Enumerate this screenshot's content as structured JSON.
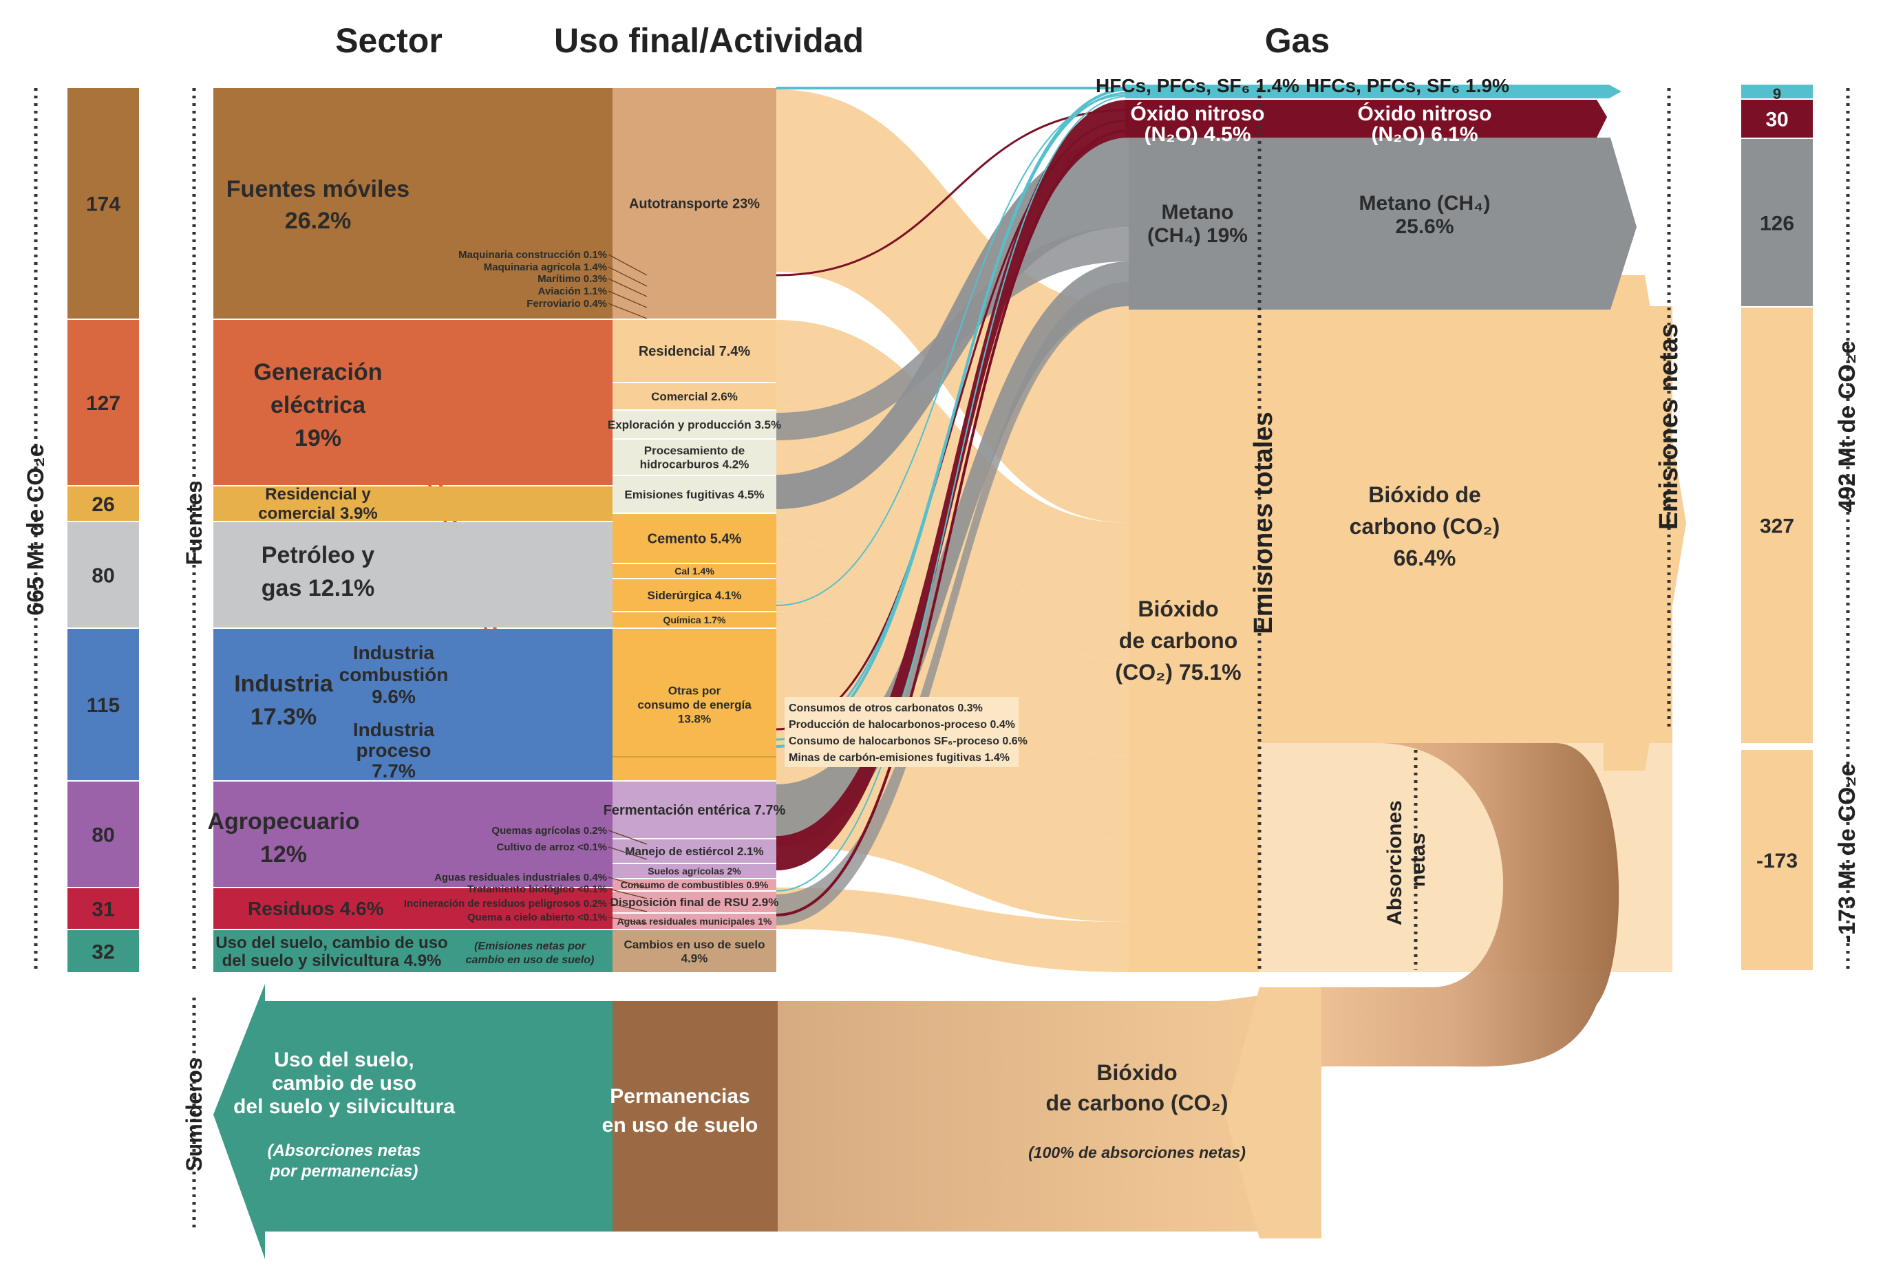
{
  "headers": {
    "sector": "Sector",
    "activity": "Uso final/Actividad",
    "gas": "Gas"
  },
  "side_labels": {
    "left_total": "665 Mt de CO₂e",
    "fuentes": "Fuentes",
    "sumideros": "Sumideros",
    "emisiones_totales": "Emisiones totales",
    "emisiones_netas": "Emisiones netas",
    "absorciones_netas": "Absorciones netas",
    "right_total": "492 Mt de CO₂e",
    "right_negative": "-173 Mt de CO₂e"
  },
  "colors": {
    "mobile": "#a9733b",
    "electric": "#d9673f",
    "residential": "#e8b04a",
    "oil": "#c6c7c9",
    "industry": "#4f7ec0",
    "agro": "#9b62a9",
    "waste": "#c0233f",
    "landuse": "#3d9a87",
    "co2": "#f8cf97",
    "ch4": "#8e9194",
    "n2o": "#7b0f26",
    "hfc": "#55c0cd"
  },
  "left_totals": [
    {
      "value": "174",
      "color": "#a9733b"
    },
    {
      "value": "127",
      "color": "#d9673f"
    },
    {
      "value": "26",
      "color": "#e8b04a"
    },
    {
      "value": "80",
      "color": "#c6c7c9"
    },
    {
      "value": "115",
      "color": "#4f7ec0"
    },
    {
      "value": "80",
      "color": "#9b62a9"
    },
    {
      "value": "31",
      "color": "#c0233f"
    },
    {
      "value": "32",
      "color": "#3d9a87"
    }
  ],
  "sectors": {
    "mobile": [
      "Fuentes móviles",
      "26.2%"
    ],
    "electric": [
      "Generación",
      "eléctrica",
      "19%"
    ],
    "residential": [
      "Residencial y",
      "comercial 3.9%"
    ],
    "oil": [
      "Petróleo y",
      "gas 12.1%"
    ],
    "industry": [
      "Industria",
      "17.3%"
    ],
    "ind_comb": [
      "Industria",
      "combustión",
      "9.6%"
    ],
    "ind_proc": [
      "Industria",
      "proceso",
      "7.7%"
    ],
    "agro": [
      "Agropecuario",
      "12%"
    ],
    "waste": "Residuos 4.6%",
    "landuse": [
      "Uso del suelo, cambio de uso",
      "del suelo y silvicultura 4.9%"
    ],
    "landuse_note": [
      "(Emisiones netas por",
      "cambio en uso de suelo)"
    ]
  },
  "subsectors": [
    "Maquinaria construcción 0.1%",
    "Maquinaria agrícola 1.4%",
    "Marítimo 0.3%",
    "Aviación 1.1%",
    "Ferroviario 0.4%",
    "Quemas agrícolas 0.2%",
    "Cultivo de arroz <0.1%",
    "Aguas residuales industriales 0.4%",
    "Tratamiento biológico <0.1%",
    "Incineración de residuos peligrosos 0.2%",
    "Quema a cielo abierto <0.1%"
  ],
  "activities": {
    "autotransporte": "Autotransporte 23%",
    "residencial": "Residencial 7.4%",
    "comercial": "Comercial 2.6%",
    "exploracion": "Exploración y producción 3.5%",
    "procesamiento": [
      "Procesamiento de",
      "hidrocarburos 4.2%"
    ],
    "fugitivas": "Emisiones fugitivas 4.5%",
    "cemento": "Cemento 5.4%",
    "cal": "Cal 1.4%",
    "siderurgica": "Siderúrgica 4.1%",
    "quimica": "Química 1.7%",
    "otras": [
      "Otras por",
      "consumo de energía",
      "13.8%"
    ],
    "fermentacion": "Fermentación entérica 7.7%",
    "estiercol": "Manejo de estiércol 2.1%",
    "suelos": "Suelos agrícolas 2%",
    "combustibles": "Consumo de combustibles 0.9%",
    "rsu": "Disposición final de RSU 2.9%",
    "aguas_mun": "Aguas residuales municipales 1%",
    "cambios": [
      "Cambios en uso de suelo",
      "4.9%"
    ]
  },
  "small_processes": [
    "Consumos de otros carbonatos 0.3%",
    "Producción de halocarbonos-proceso 0.4%",
    "Consumo de halocarbonos SF₆-proceso 0.6%",
    "Minas de carbón-emisiones fugitivas 1.4%"
  ],
  "gases_total": {
    "hfc": "HFCs, PFCs, SF₆ 1.4%",
    "n2o": [
      "Óxido nitroso",
      "(N₂O) 4.5%"
    ],
    "ch4": [
      "Metano",
      "(CH₄) 19%"
    ],
    "co2": [
      "Bióxido",
      "de carbono",
      "(CO₂) 75.1%"
    ]
  },
  "gases_net": {
    "hfc": "HFCs, PFCs, SF₆ 1.9%",
    "n2o": [
      "Óxido nitroso",
      "(N₂O) 6.1%"
    ],
    "ch4": [
      "Metano (CH₄)",
      "25.6%"
    ],
    "co2": [
      "Bióxido de",
      "carbono (CO₂)",
      "66.4%"
    ]
  },
  "right_totals": [
    {
      "value": "9",
      "color": "#55c0cd"
    },
    {
      "value": "30",
      "color": "#7b0f26"
    },
    {
      "value": "126",
      "color": "#8e9194"
    },
    {
      "value": "327",
      "color": "#f8cf97"
    },
    {
      "value": "-173",
      "color": "#f8cf97"
    }
  ],
  "sinks": {
    "landuse": [
      "Uso del suelo,",
      "cambio de uso",
      "del suelo y silvicultura"
    ],
    "landuse_note": [
      "(Absorciones netas",
      "por permanencias)"
    ],
    "permanencias": [
      "Permanencias",
      "en uso de suelo"
    ],
    "co2": [
      "Bióxido",
      "de carbono (CO₂)"
    ],
    "co2_note": "(100% de absorciones netas)"
  }
}
